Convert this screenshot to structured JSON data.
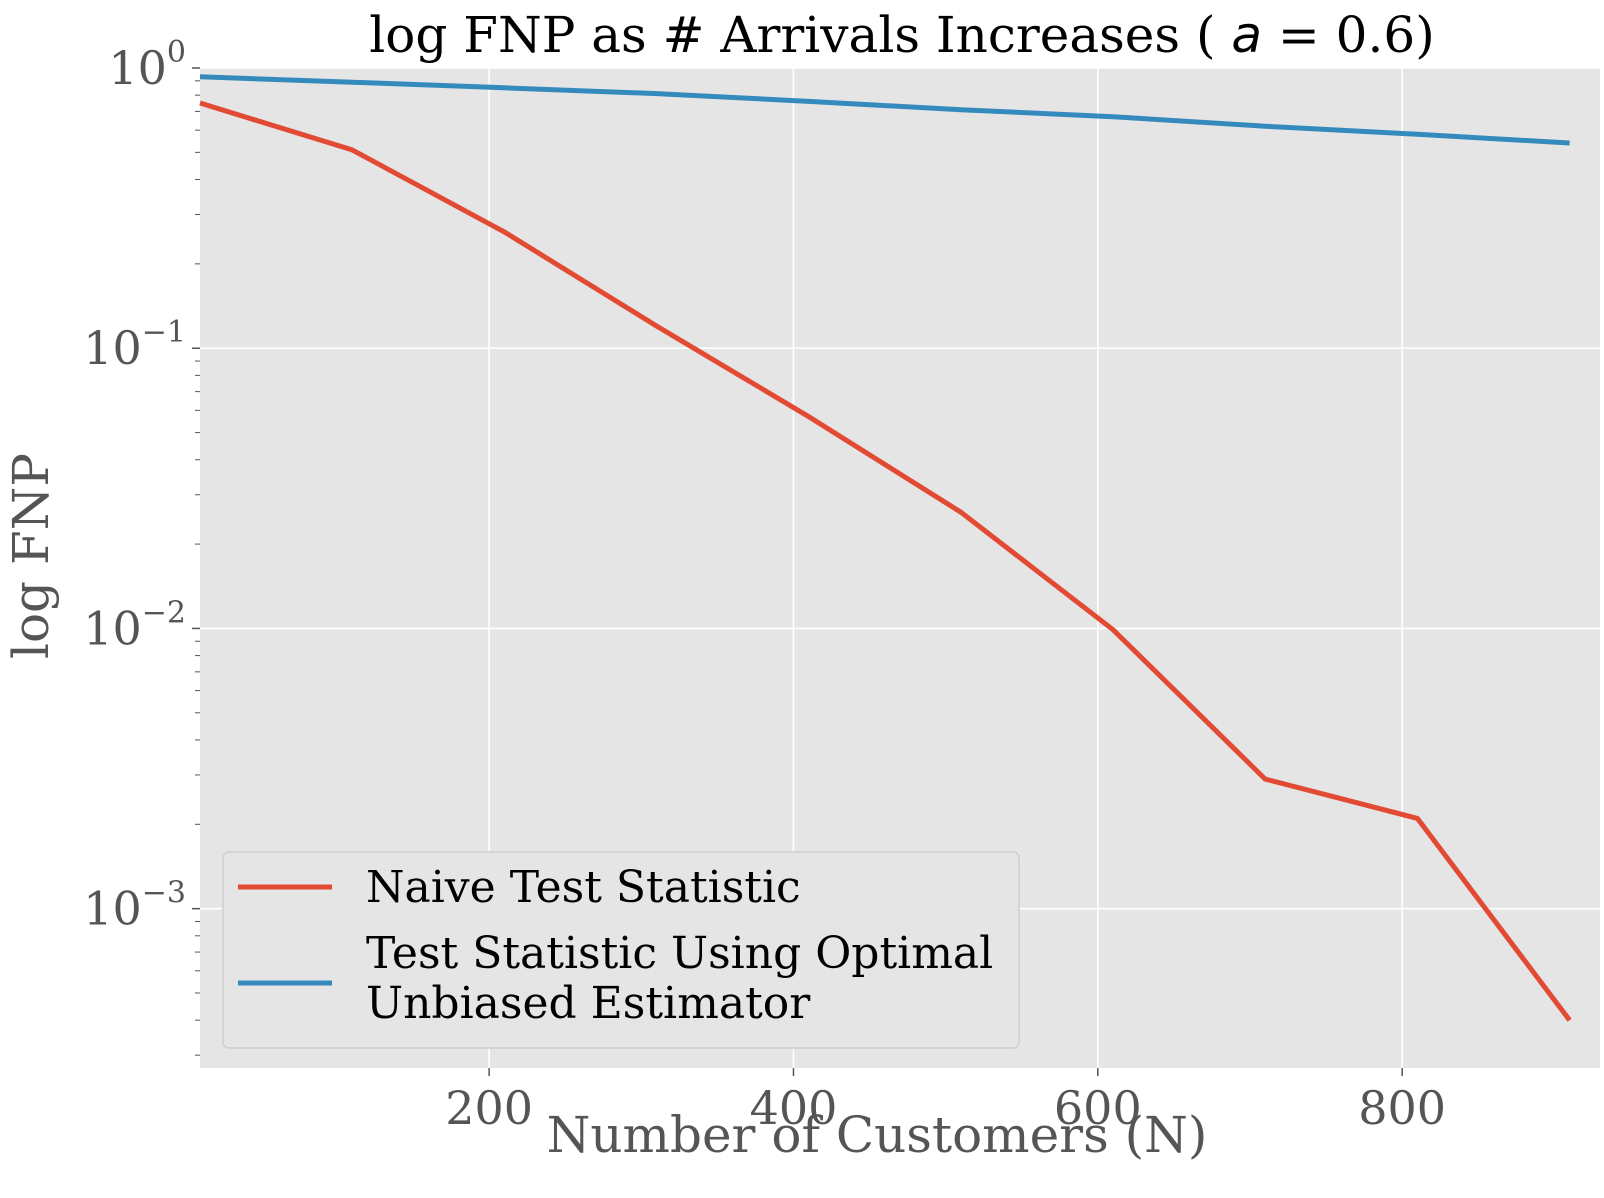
{
  "chart_data": {
    "type": "line",
    "title_prefix": "log FNP as # Arrivals Increases ( ",
    "title_math": "a",
    "title_suffix": " = 0.6)",
    "xlabel": "Number of Customers (N)",
    "ylabel": "log FNP",
    "x_scale": "linear",
    "y_scale": "log",
    "xlim": [
      10,
      930
    ],
    "ylim": [
      0.00027,
      1.0
    ],
    "grid": true,
    "legend_position": "lower-left",
    "background_color": "#e5e5e5",
    "grid_color": "#ffffff",
    "x_ticks": [
      200,
      400,
      600,
      800
    ],
    "y_ticks": [
      {
        "base": "10",
        "exp": "0",
        "value": 1.0
      },
      {
        "base": "10",
        "exp": "−1",
        "value": 0.1
      },
      {
        "base": "10",
        "exp": "−2",
        "value": 0.01
      },
      {
        "base": "10",
        "exp": "−3",
        "value": 0.001
      }
    ],
    "series": [
      {
        "name": "Naive Test Statistic",
        "color": "#e24a33",
        "x": [
          10,
          110,
          210,
          310,
          410,
          510,
          610,
          710,
          810,
          910
        ],
        "y": [
          0.75,
          0.51,
          0.26,
          0.12,
          0.057,
          0.026,
          0.0099,
          0.0029,
          0.0021,
          0.0004
        ]
      },
      {
        "name": "Test Statistic Using Optimal Unbiased Estimator",
        "legend_lines": [
          "Test Statistic Using Optimal",
          "Unbiased Estimator"
        ],
        "color": "#348abd",
        "x": [
          10,
          110,
          210,
          310,
          410,
          510,
          610,
          710,
          810,
          910
        ],
        "y": [
          0.93,
          0.89,
          0.85,
          0.81,
          0.76,
          0.71,
          0.67,
          0.62,
          0.58,
          0.54
        ]
      }
    ]
  }
}
